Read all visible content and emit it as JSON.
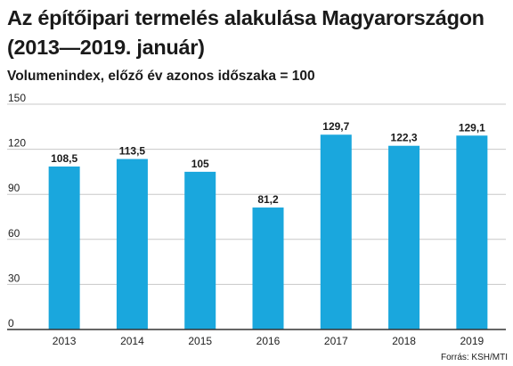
{
  "chart_data": {
    "type": "bar",
    "title": "Az építőipari termelés alakulása Magyarországon (2013—2019. január)",
    "subtitle": "Volumenindex, előző év azonos időszaka = 100",
    "categories": [
      "2013",
      "2014",
      "2015",
      "2016",
      "2017",
      "2018",
      "2019"
    ],
    "values": [
      108.5,
      113.5,
      105,
      81.2,
      129.7,
      122.3,
      129.1
    ],
    "value_labels": [
      "108,5",
      "113,5",
      "105",
      "81,2",
      "129,7",
      "122,3",
      "129,1"
    ],
    "ylim": [
      0,
      150
    ],
    "yticks": [
      "0",
      "30",
      "60",
      "90",
      "120",
      "150"
    ],
    "grid": true,
    "colors": {
      "bar": "#1aa7dd",
      "grid": "#c8c8c8",
      "axis": "#333333"
    },
    "source": "Forrás: KSH/MTI"
  }
}
